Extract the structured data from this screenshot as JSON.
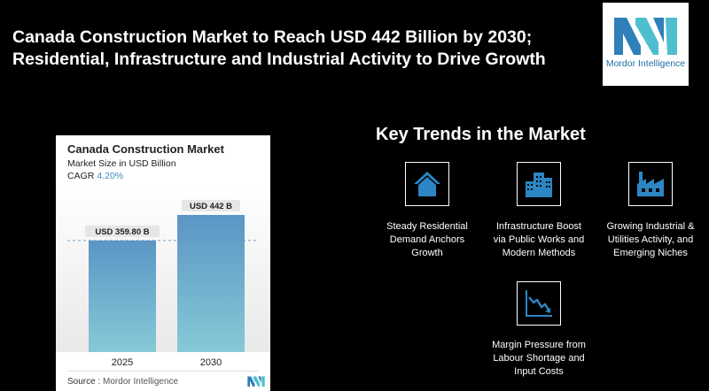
{
  "headline": {
    "line1": "Canada Construction Market to Reach USD 442 Billion by 2030;",
    "line2": "Residential, Infrastructure and Industrial Activity to Drive Growth"
  },
  "logo": {
    "text": "Mordor Intelligence"
  },
  "card": {
    "title": "Canada Construction Market",
    "subtitle": "Market Size in USD Billion",
    "cagr_label": "CAGR",
    "cagr_value": "4.20%",
    "source_label": "Source :",
    "source_value": "Mordor Intelligence"
  },
  "chart_data": {
    "type": "bar",
    "title": "Canada Construction Market",
    "ylabel": "Market Size in USD Billion",
    "categories": [
      "2025",
      "2030"
    ],
    "values": [
      359.8,
      442
    ],
    "value_labels": [
      "USD 359.80 B",
      "USD 442 B"
    ],
    "ylim": [
      0,
      442
    ],
    "grid": false,
    "reference_line": 359.8,
    "colors": {
      "bar_top": "#5b95c5",
      "bar_bottom": "#87c9d6"
    }
  },
  "trends": {
    "title": "Key Trends in the Market",
    "items": [
      {
        "icon": "house-icon",
        "label_lines": [
          "Steady Residential",
          "Demand Anchors",
          "Growth"
        ]
      },
      {
        "icon": "buildings-icon",
        "label_lines": [
          "Infrastructure Boost",
          "via Public Works and",
          "Modern Methods"
        ]
      },
      {
        "icon": "factory-icon",
        "label_lines": [
          "Growing Industrial &",
          "Utilities Activity, and",
          "Emerging Niches"
        ]
      },
      {
        "icon": "declining-chart-icon",
        "label_lines": [
          "Margin Pressure from",
          "Labour Shortage and",
          "Input Costs"
        ]
      }
    ]
  },
  "colors": {
    "accent": "#2e7db5",
    "icon_blue": "#2c86c4",
    "background": "#000000"
  }
}
